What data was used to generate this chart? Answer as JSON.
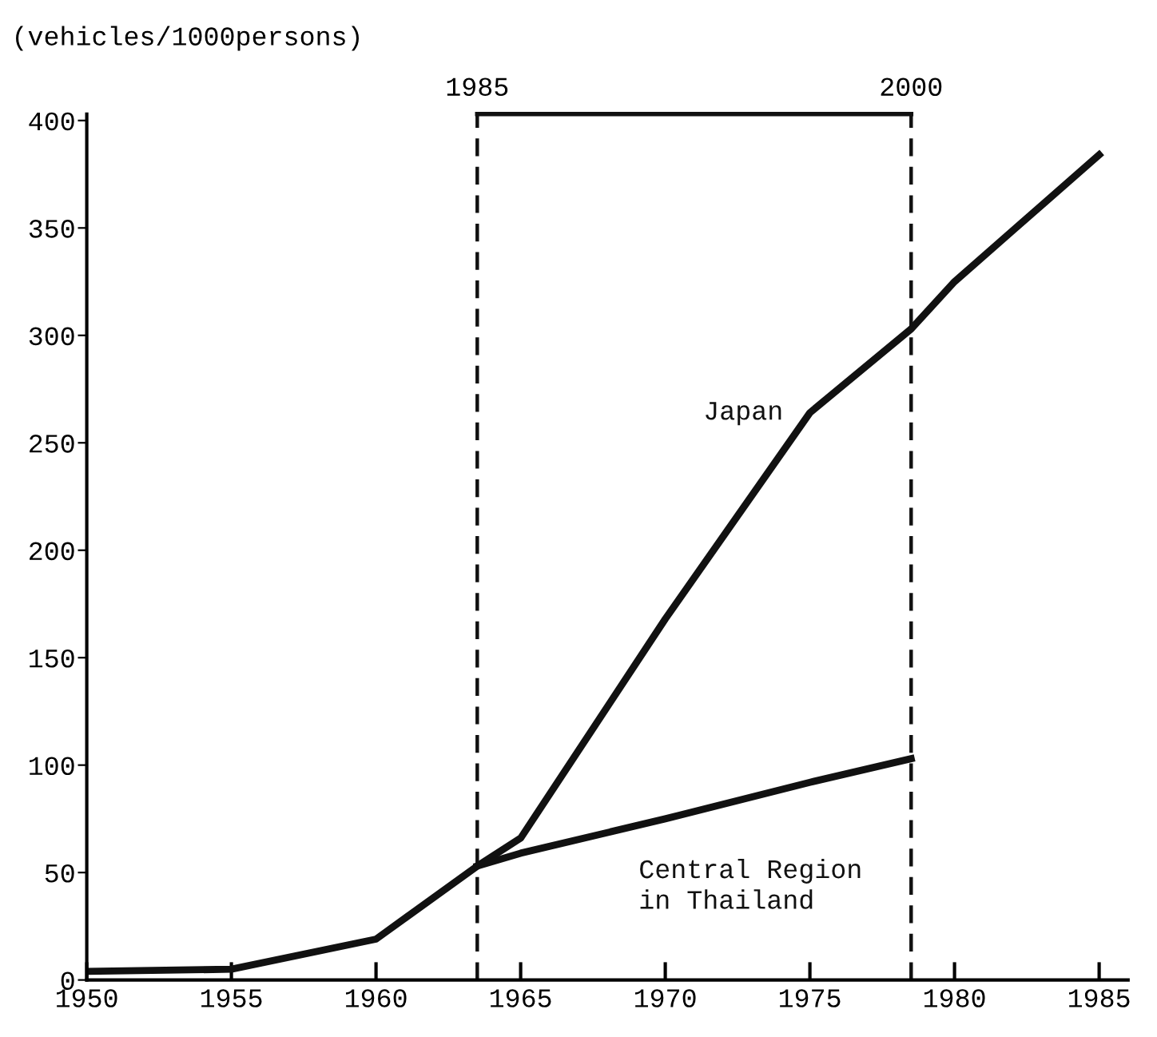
{
  "chart_data": {
    "type": "line",
    "ylabel": "(vehicles/1000persons)",
    "xlim": [
      1950,
      1986
    ],
    "ylim": [
      0,
      403
    ],
    "xticks": [
      1950,
      1955,
      1960,
      1965,
      1970,
      1975,
      1980,
      1985
    ],
    "yticks": [
      0,
      50,
      100,
      150,
      200,
      250,
      300,
      350,
      400
    ],
    "grid": false,
    "legend": false,
    "marker": "none",
    "line_style": "solid",
    "series": [
      {
        "name": "Japan",
        "color": "#111111",
        "x": [
          1950,
          1955,
          1960,
          1963.5,
          1965,
          1970,
          1975,
          1978.5,
          1980,
          1985
        ],
        "values": [
          4,
          5,
          19,
          53,
          66,
          168,
          264,
          303,
          325,
          384
        ]
      },
      {
        "name": "Central Region\nin Thailand",
        "color": "#111111",
        "x": [
          1963.5,
          1965,
          1970,
          1975,
          1978.5
        ],
        "values": [
          53,
          59,
          75,
          92,
          103
        ]
      }
    ],
    "ref_lines": [
      {
        "axis": "x",
        "value": 1963.5,
        "line_style": "dashed",
        "color": "#111111"
      },
      {
        "axis": "x",
        "value": 1978.5,
        "line_style": "dashed",
        "color": "#111111"
      }
    ],
    "annotations": [
      "1985",
      "2000"
    ]
  }
}
